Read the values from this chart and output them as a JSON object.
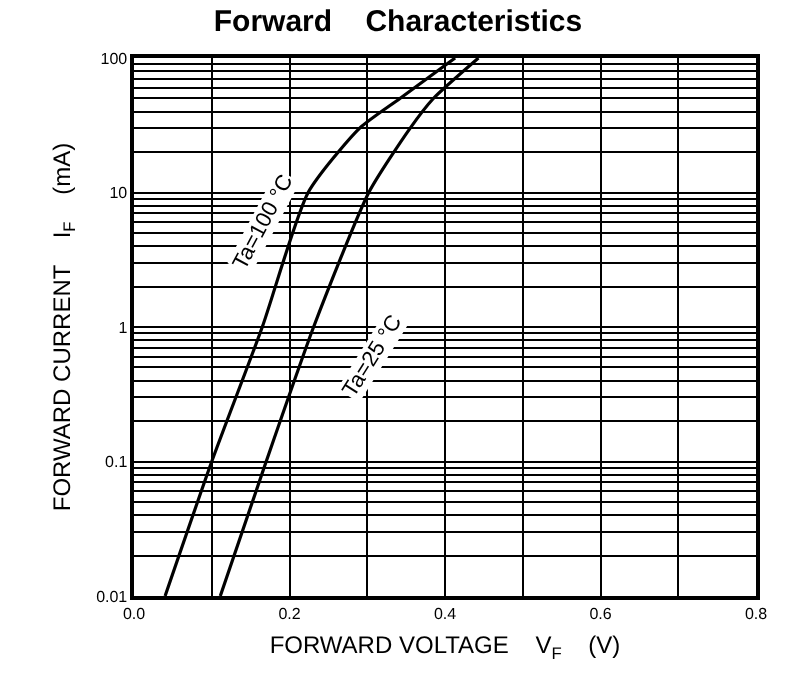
{
  "chart_data": {
    "type": "line",
    "title": "Forward    Characteristics",
    "xlabel": "FORWARD VOLTAGE    V$_{F}$    (V)",
    "ylabel": "FORWARD CURRENT    I$_{F}$    (mA)",
    "xlim": [
      0,
      0.8
    ],
    "xticks": [
      {
        "value": 0,
        "label": "0.0"
      },
      0.2,
      0.4,
      0.6,
      0.8
    ],
    "ylim": [
      0.01,
      100
    ],
    "yticks": [
      0.01,
      0.1,
      1,
      10,
      100
    ],
    "log": "y",
    "grid": true,
    "legend": false,
    "marker": "none",
    "line_style": "solid",
    "series": [
      {
        "name": "Ta=100 °C",
        "color": "#000000",
        "x": [
          0.04,
          0.1,
          0.165,
          0.224,
          0.29,
          0.342,
          0.413
        ],
        "values": [
          0.01,
          0.1,
          1,
          10,
          30,
          50,
          100
        ]
      },
      {
        "name": "Ta=25 °C",
        "color": "#000000",
        "x": [
          0.111,
          0.17,
          0.231,
          0.302,
          0.355,
          0.385,
          0.443
        ],
        "values": [
          0.01,
          0.1,
          1,
          10,
          30,
          50,
          100
        ]
      }
    ]
  }
}
